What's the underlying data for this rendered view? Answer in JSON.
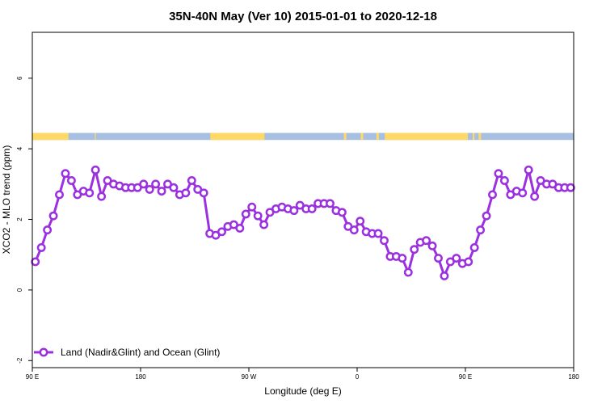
{
  "chart_data": {
    "type": "line",
    "title": "35N-40N May (Ver 10)   2015-01-01 to 2020-12-18",
    "xlabel": "Longitude (deg E)",
    "ylabel": "XCO2 - MLO trend (ppm)",
    "xlim": [
      90,
      540
    ],
    "ylim": [
      -2.2,
      7.3
    ],
    "x_ticks": [
      {
        "value": 90,
        "label": "90 E"
      },
      {
        "value": 180,
        "label": "180"
      },
      {
        "value": 270,
        "label": "90 W"
      },
      {
        "value": 360,
        "label": "0"
      },
      {
        "value": 450,
        "label": "90 E"
      },
      {
        "value": 540,
        "label": "180"
      }
    ],
    "y_ticks": [
      {
        "value": -2,
        "label": "-2"
      },
      {
        "value": 0,
        "label": "0"
      },
      {
        "value": 2,
        "label": "2"
      },
      {
        "value": 4,
        "label": "4"
      },
      {
        "value": 6,
        "label": "6"
      }
    ],
    "land_ocean_band": {
      "y_range": [
        4.25,
        4.45
      ],
      "land_color": "#FFD966",
      "ocean_color": "#A7BFE0",
      "land_segments": [
        [
          90,
          120
        ],
        [
          142,
          142.8
        ],
        [
          238,
          283
        ],
        [
          349,
          351
        ],
        [
          363,
          365
        ],
        [
          376,
          378
        ],
        [
          383,
          452
        ],
        [
          456,
          457.5
        ],
        [
          461,
          463
        ]
      ]
    },
    "series": [
      {
        "name": "Land (Nadir&Glint) and Ocean (Glint)",
        "color": "#9B30E0",
        "x": [
          92.5,
          97.5,
          102.5,
          107.5,
          112.5,
          117.5,
          122.5,
          127.5,
          132.5,
          137.5,
          142.5,
          147.5,
          152.5,
          157.5,
          162.5,
          167.5,
          172.5,
          177.5,
          182.5,
          187.5,
          192.5,
          197.5,
          202.5,
          207.5,
          212.5,
          217.5,
          222.5,
          227.5,
          232.5,
          237.5,
          242.5,
          247.5,
          252.5,
          257.5,
          262.5,
          267.5,
          272.5,
          277.5,
          282.5,
          287.5,
          292.5,
          297.5,
          302.5,
          307.5,
          312.5,
          317.5,
          322.5,
          327.5,
          332.5,
          337.5,
          342.5,
          347.5,
          352.5,
          357.5,
          362.5,
          367.5,
          372.5,
          377.5,
          382.5,
          387.5,
          392.5,
          397.5,
          402.5,
          407.5,
          412.5,
          417.5,
          422.5,
          427.5,
          432.5,
          437.5,
          442.5,
          447.5,
          452.5,
          457.5,
          462.5,
          467.5,
          472.5,
          477.5,
          482.5,
          487.5,
          492.5,
          497.5,
          502.5,
          507.5,
          512.5,
          517.5,
          522.5,
          527.5,
          532.5,
          537.5
        ],
        "y": [
          0.8,
          1.2,
          1.7,
          2.1,
          2.7,
          3.3,
          3.1,
          2.7,
          2.8,
          2.75,
          3.4,
          2.65,
          3.1,
          3.0,
          2.95,
          2.9,
          2.9,
          2.9,
          3.0,
          2.85,
          3.0,
          2.8,
          3.0,
          2.9,
          2.7,
          2.75,
          3.1,
          2.85,
          2.75,
          1.6,
          1.55,
          1.65,
          1.8,
          1.85,
          1.75,
          2.15,
          2.35,
          2.1,
          1.85,
          2.2,
          2.3,
          2.35,
          2.3,
          2.25,
          2.4,
          2.3,
          2.3,
          2.45,
          2.45,
          2.45,
          2.25,
          2.2,
          1.8,
          1.7,
          1.95,
          1.65,
          1.6,
          1.6,
          1.4,
          0.95,
          0.95,
          0.9,
          0.5,
          1.15,
          1.35,
          1.4,
          1.25,
          0.9,
          0.4,
          0.8,
          0.9,
          0.75,
          0.8,
          1.2,
          1.7,
          2.1,
          2.7,
          3.3,
          3.1,
          2.7,
          2.8,
          2.75,
          3.4,
          2.65,
          3.1,
          3.0,
          3.0,
          2.9,
          2.9,
          2.9
        ]
      }
    ],
    "legend": {
      "position": "bottom-left"
    },
    "grid": false
  }
}
